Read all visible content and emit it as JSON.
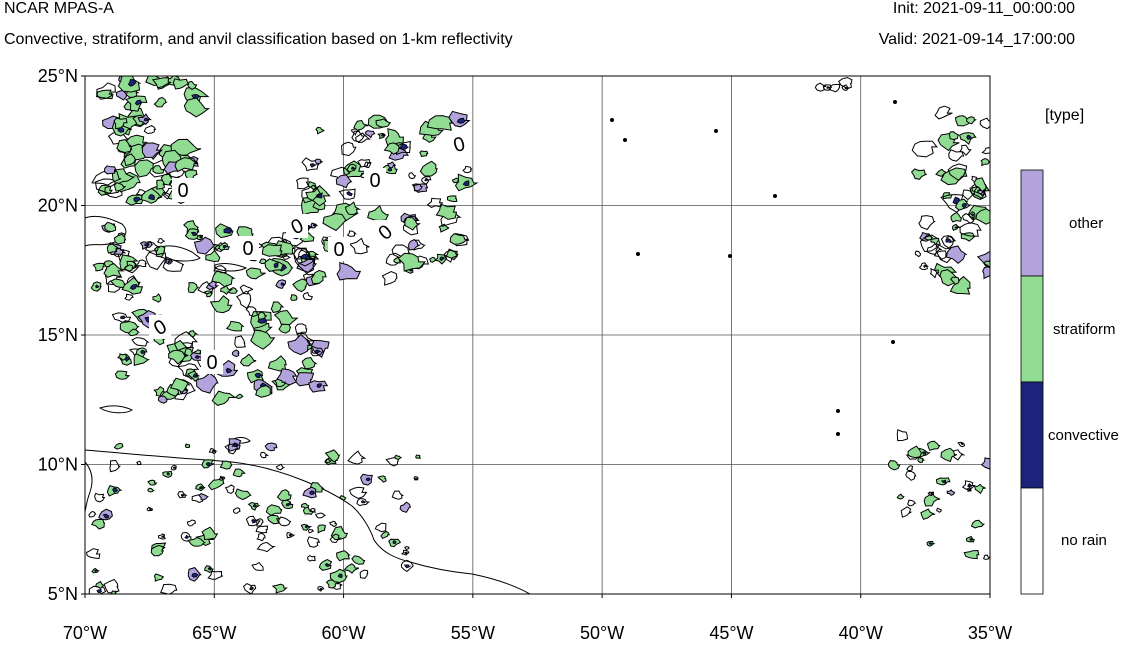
{
  "header": {
    "title": "NCAR MPAS-A",
    "subtitle": "Convective, stratiform, and anvil classification based on 1-km reflectivity",
    "init": "Init: 2021-09-11_00:00:00",
    "valid": "Valid: 2021-09-14_17:00:00"
  },
  "map": {
    "lat_range": [
      5,
      25
    ],
    "lon_range": [
      -70,
      -35
    ],
    "lat_ticks": [
      {
        "value": 25,
        "label": "25°N"
      },
      {
        "value": 20,
        "label": "20°N"
      },
      {
        "value": 15,
        "label": "15°N"
      },
      {
        "value": 10,
        "label": "10°N"
      },
      {
        "value": 5,
        "label": "5°N"
      }
    ],
    "lon_ticks": [
      {
        "value": -70,
        "label": "70°W"
      },
      {
        "value": -65,
        "label": "65°W"
      },
      {
        "value": -60,
        "label": "60°W"
      },
      {
        "value": -55,
        "label": "55°W"
      },
      {
        "value": -50,
        "label": "50°W"
      },
      {
        "value": -45,
        "label": "45°W"
      },
      {
        "value": -40,
        "label": "40°W"
      },
      {
        "value": -35,
        "label": "35°W"
      }
    ],
    "grid": true,
    "contour_label": "0"
  },
  "legend": {
    "title": "[type]",
    "placement": "right",
    "items": [
      {
        "label": "other",
        "color": "#b3a3dc"
      },
      {
        "label": "stratiform",
        "color": "#8fdc92"
      },
      {
        "label": "convective",
        "color": "#1b237a"
      },
      {
        "label": "no rain",
        "color": "#ffffff"
      }
    ]
  }
}
